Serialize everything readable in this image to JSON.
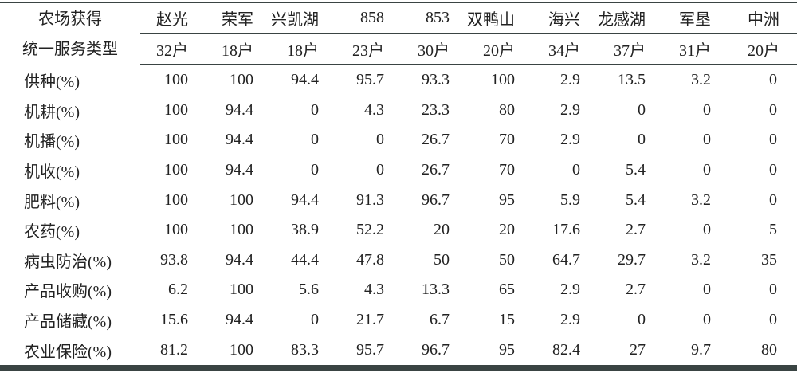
{
  "table": {
    "corner_label_line1": "农场获得",
    "corner_label_line2": "统一服务类型",
    "columns": [
      {
        "name": "赵光",
        "households": "32户"
      },
      {
        "name": "荣军",
        "households": "18户"
      },
      {
        "name": "兴凯湖",
        "households": "18户"
      },
      {
        "name": "858",
        "households": "23户"
      },
      {
        "name": "853",
        "households": "30户"
      },
      {
        "name": "双鸭山",
        "households": "20户"
      },
      {
        "name": "海兴",
        "households": "34户"
      },
      {
        "name": "龙感湖",
        "households": "37户"
      },
      {
        "name": "军垦",
        "households": "31户"
      },
      {
        "name": "中洲",
        "households": "20户"
      }
    ],
    "rows": [
      {
        "label": "供种(%)",
        "values": [
          "100",
          "100",
          "94.4",
          "95.7",
          "93.3",
          "100",
          "2.9",
          "13.5",
          "3.2",
          "0"
        ]
      },
      {
        "label": "机耕(%)",
        "values": [
          "100",
          "94.4",
          "0",
          "4.3",
          "23.3",
          "80",
          "2.9",
          "0",
          "0",
          "0"
        ]
      },
      {
        "label": "机播(%)",
        "values": [
          "100",
          "94.4",
          "0",
          "0",
          "26.7",
          "70",
          "2.9",
          "0",
          "0",
          "0"
        ]
      },
      {
        "label": "机收(%)",
        "values": [
          "100",
          "94.4",
          "0",
          "0",
          "26.7",
          "70",
          "0",
          "5.4",
          "0",
          "0"
        ]
      },
      {
        "label": "肥料(%)",
        "values": [
          "100",
          "100",
          "94.4",
          "91.3",
          "96.7",
          "95",
          "5.9",
          "5.4",
          "3.2",
          "0"
        ]
      },
      {
        "label": "农药(%)",
        "values": [
          "100",
          "100",
          "38.9",
          "52.2",
          "20",
          "20",
          "17.6",
          "2.7",
          "0",
          "5"
        ]
      },
      {
        "label": "病虫防治(%)",
        "values": [
          "93.8",
          "94.4",
          "44.4",
          "47.8",
          "50",
          "50",
          "64.7",
          "29.7",
          "3.2",
          "35"
        ]
      },
      {
        "label": "产品收购(%)",
        "values": [
          "6.2",
          "100",
          "5.6",
          "4.3",
          "13.3",
          "65",
          "2.9",
          "2.7",
          "0",
          "0"
        ]
      },
      {
        "label": "产品储藏(%)",
        "values": [
          "15.6",
          "94.4",
          "0",
          "21.7",
          "6.7",
          "15",
          "2.9",
          "0",
          "0",
          "0"
        ]
      },
      {
        "label": "农业保险(%)",
        "values": [
          "81.2",
          "100",
          "83.3",
          "95.7",
          "96.7",
          "95",
          "82.4",
          "27",
          "9.7",
          "80"
        ]
      }
    ]
  }
}
